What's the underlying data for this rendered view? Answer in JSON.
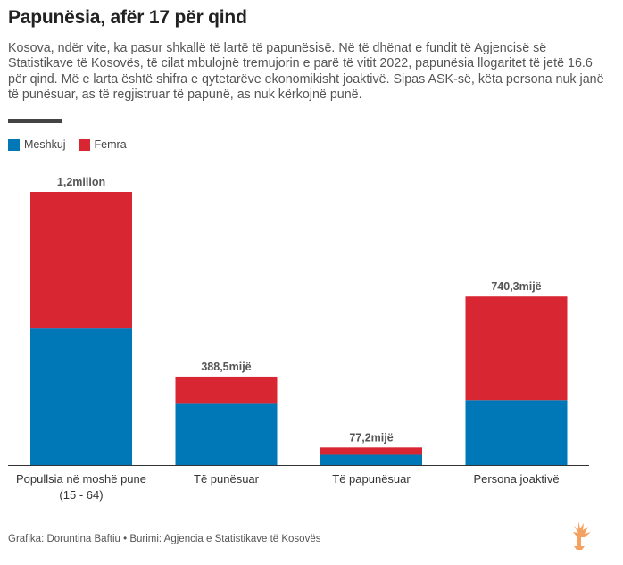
{
  "title": "Papunësia, afër 17 për qind",
  "description": "Kosova, ndër vite, ka pasur shkallë të lartë të papunësisë. Në të dhënat e fundit të Agjencisë së Statistikave të Kosovës, të cilat mbulojnë tremujorin e parë të vitit 2022, papunësia llogaritet të jetë 16.6 për qind. Më e larta është shifra e qytetarëve ekonomikisht joaktivë. Sipas ASK-së, këta persona nuk janë të punësuar, as të regjistruar të papunë, as nuk kërkojnë punë.",
  "legend": [
    {
      "label": "Meshkuj",
      "color": "#0077b6"
    },
    {
      "label": "Femra",
      "color": "#d92633"
    }
  ],
  "footer": "Grafika: Doruntina Baftiu • Burimi: Agjencia e Statistikave të Kosovës",
  "logo_icon": "rfe-rl-flame-logo-icon",
  "chart_data": {
    "type": "bar",
    "stacked": true,
    "categories": [
      "Popullsia në moshë pune (15 - 64)",
      "Të punësuar",
      "Të papunësuar",
      "Persona joaktivë"
    ],
    "category_lines": [
      [
        "Popullsia në moshë pune",
        "(15 - 64)"
      ],
      [
        "Të punësuar"
      ],
      [
        "Të papunësuar"
      ],
      [
        "Persona joaktivë"
      ]
    ],
    "series": [
      {
        "name": "Meshkuj",
        "color": "#0077b6",
        "values": [
          599.5,
          269.0,
          45.2,
          285.3
        ]
      },
      {
        "name": "Femra",
        "color": "#d92633",
        "values": [
          600.5,
          119.5,
          32.0,
          455.0
        ]
      }
    ],
    "totals": [
      1200,
      388.5,
      77.2,
      740.3
    ],
    "total_labels": [
      "1,2milion",
      "388,5mijë",
      "77,2mijë",
      "740,3mijë"
    ],
    "ylim": [
      0,
      1200
    ],
    "grid": false,
    "legend_position": "top-left"
  }
}
